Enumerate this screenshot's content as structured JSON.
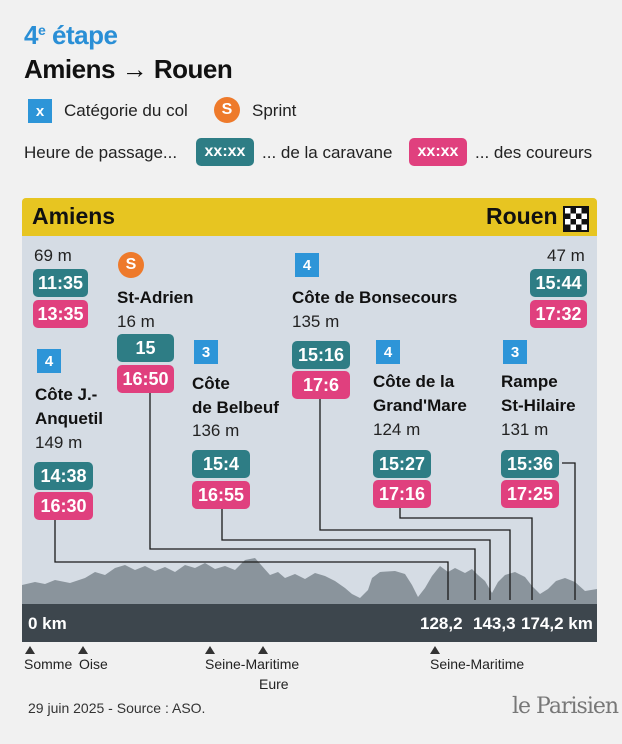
{
  "header": {
    "stage_num": "4",
    "stage_sup": "e",
    "stage_word": "étape",
    "route_from": "Amiens",
    "route_arrow": "→",
    "route_to": "Rouen"
  },
  "legend": {
    "cat_symbol": "x",
    "cat_label": "Catégorie du col",
    "sprint_symbol": "S",
    "sprint_label": "Sprint",
    "passage_label": "Heure de passage...",
    "caravane_pill": "xx:xx",
    "caravane_label": "... de la caravane",
    "coureurs_pill": "xx:xx",
    "coureurs_label": "... des coureurs"
  },
  "banner": {
    "start": "Amiens",
    "finish": "Rouen"
  },
  "start_point": {
    "alt": "69 m",
    "caravane": "11:35",
    "coureurs": "13:35"
  },
  "finish_point": {
    "alt": "47 m",
    "caravane": "15:44",
    "coureurs": "17:32"
  },
  "points": [
    {
      "badge": "4",
      "name1": "Côte J.-",
      "name2": "Anquetil",
      "alt": "149 m",
      "caravane": "14:38",
      "coureurs": "16:30"
    },
    {
      "badge": "S",
      "name1": "St-Adrien",
      "name2": "",
      "alt": "16 m",
      "caravane": "15",
      "coureurs": "16:50"
    },
    {
      "badge": "3",
      "name1": "Côte",
      "name2": "de Belbeuf",
      "alt": "136 m",
      "caravane": "15:4",
      "coureurs": "16:55"
    },
    {
      "badge": "4",
      "name1": "Côte de Bonsecours",
      "name2": "",
      "alt": "135 m",
      "caravane": "15:16",
      "coureurs": "17:6"
    },
    {
      "badge": "4",
      "name1": "Côte de la",
      "name2": "Grand'Mare",
      "alt": "124 m",
      "caravane": "15:27",
      "coureurs": "17:16"
    },
    {
      "badge": "3",
      "name1": "Rampe",
      "name2": "St-Hilaire",
      "alt": "131 m",
      "caravane": "15:36",
      "coureurs": "17:25"
    }
  ],
  "axis": {
    "km0": "0 km",
    "km1": "128,2",
    "km2": "143,3",
    "km3": "174,2 km"
  },
  "departments": [
    "Somme",
    "Oise",
    "Seine-Maritime",
    "Eure",
    "Seine-Maritime"
  ],
  "footer": {
    "source": "29 juin 2025 - Source : ASO.",
    "logo": "le Parisien"
  },
  "colors": {
    "title_blue": "#2a8fd6",
    "banner_yellow": "#e7c521",
    "caravane_teal": "#2e7d85",
    "coureurs_pink": "#e0407e",
    "category_blue": "#2d95d8",
    "sprint_orange": "#ee7a2b"
  }
}
